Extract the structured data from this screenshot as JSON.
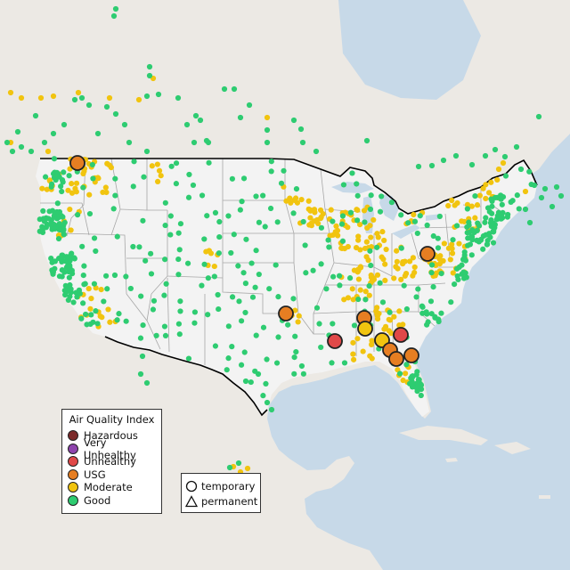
{
  "map": {
    "colors": {
      "ocean": "#c7d9e8",
      "land": "#ece9e4",
      "usa": "#f3f3f3",
      "lake": "#c7d9e8",
      "state_line": "#a7a7a7",
      "country_line": "#000000",
      "hazardous": "#7b2a2a",
      "very_unhealthy": "#8e44ad",
      "unhealthy": "#e04848",
      "usg": "#e67e22",
      "moderate": "#f1c40f",
      "good": "#2ecc71"
    },
    "large_markers": [
      {
        "category": "usg",
        "location": "Idaho/Washington"
      },
      {
        "category": "usg",
        "location": "Ohio/West Virginia"
      },
      {
        "category": "usg",
        "location": "Oklahoma/Arkansas"
      },
      {
        "category": "usg",
        "location": "Tennessee"
      },
      {
        "category": "moderate",
        "location": "Alabama"
      },
      {
        "category": "unhealthy",
        "location": "Mississippi"
      },
      {
        "category": "moderate",
        "location": "Georgia"
      },
      {
        "category": "unhealthy",
        "location": "Georgia"
      },
      {
        "category": "usg",
        "location": "Georgia"
      },
      {
        "category": "usg",
        "location": "Georgia"
      },
      {
        "category": "usg",
        "location": "Georgia/Florida"
      }
    ]
  },
  "legend": {
    "title": "Air Quality Index",
    "items": [
      {
        "label": "Hazardous",
        "color": "#7b2a2a"
      },
      {
        "label": "Very Unhealthy",
        "color": "#8e44ad"
      },
      {
        "label": "Unhealthy",
        "color": "#e04848"
      },
      {
        "label": "USG",
        "color": "#e67e22"
      },
      {
        "label": "Moderate",
        "color": "#f1c40f"
      },
      {
        "label": "Good",
        "color": "#2ecc71"
      }
    ]
  },
  "monitor_types": {
    "items": [
      {
        "label": "temporary",
        "shape": "circle"
      },
      {
        "label": "permanent",
        "shape": "triangle"
      }
    ]
  }
}
